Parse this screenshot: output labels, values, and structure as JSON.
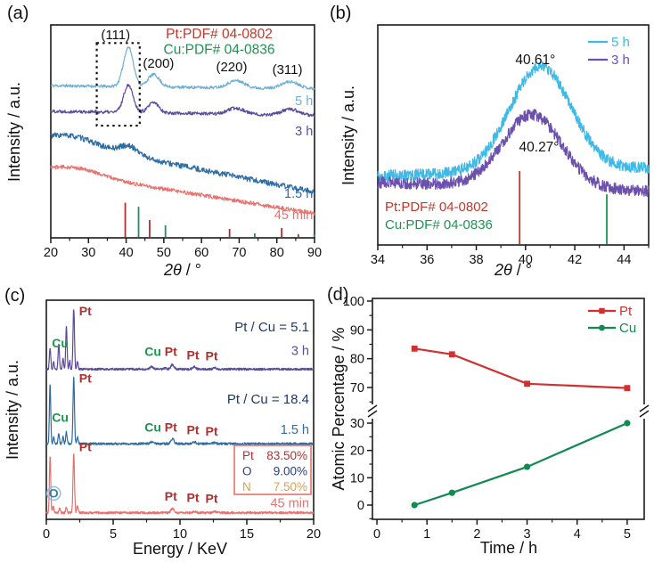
{
  "panels": {
    "a": {
      "label": "(a)"
    },
    "b": {
      "label": "(b)"
    },
    "c": {
      "label": "(c)"
    },
    "d": {
      "label": "(d)"
    }
  },
  "chart_data": [
    {
      "panel": "a",
      "type": "line",
      "subtype": "xrd",
      "title": "",
      "xlabel": "2θ / °",
      "ylabel": "Intensity / a.u.",
      "xlim": [
        20,
        90
      ],
      "xticks": [
        20,
        30,
        40,
        50,
        60,
        70,
        80,
        90
      ],
      "x_minor_step": 5,
      "legend_texts": [
        {
          "text": "Pt:PDF# 04-0802",
          "color": "#C0392B"
        },
        {
          "text": "Cu:PDF# 04-0836",
          "color": "#1E9452"
        }
      ],
      "peak_labels": [
        {
          "text": "(111)",
          "x": 37.2,
          "yfrac": 0.933
        },
        {
          "text": "(200)",
          "x": 48.6,
          "yfrac": 0.8
        },
        {
          "text": "(220)",
          "x": 68.0,
          "yfrac": 0.782
        },
        {
          "text": "(311)",
          "x": 82.8,
          "yfrac": 0.77
        }
      ],
      "dashed_box": {
        "x0": 32.2,
        "x1": 43.6,
        "yfrac0": 0.527,
        "yfrac1": 0.915
      },
      "series": [
        {
          "name": "5 h",
          "color": "#6FAFD6",
          "base_start": 0.715,
          "base_end": 0.7,
          "noise": 0.007,
          "seed": 11,
          "peaks": [
            {
              "c": 40.6,
              "h": 0.185,
              "w": 1.3
            },
            {
              "c": 47.3,
              "h": 0.058,
              "w": 1.5
            },
            {
              "c": 69.2,
              "h": 0.034,
              "w": 2.2
            },
            {
              "c": 83.6,
              "h": 0.032,
              "w": 2.3
            }
          ],
          "label": {
            "text": "5 h",
            "yfrac": 0.623
          }
        },
        {
          "name": "3 h",
          "color": "#5B4B9D",
          "base_start": 0.595,
          "base_end": 0.575,
          "noise": 0.008,
          "seed": 22,
          "peaks": [
            {
              "c": 40.6,
              "h": 0.13,
              "w": 1.25
            },
            {
              "c": 47.3,
              "h": 0.048,
              "w": 1.4
            },
            {
              "c": 69.2,
              "h": 0.028,
              "w": 2.2
            },
            {
              "c": 83.6,
              "h": 0.027,
              "w": 2.2
            }
          ],
          "label": {
            "text": "3 h",
            "yfrac": 0.481
          }
        },
        {
          "name": "1.5 h",
          "color": "#2E6DA4",
          "base_start": 0.46,
          "base_end": 0.215,
          "noise": 0.013,
          "seed": 33,
          "peaks": [
            {
              "c": 26.5,
              "h": 0.038,
              "w": 6.0
            },
            {
              "c": 40.8,
              "h": 0.042,
              "w": 2.6
            }
          ],
          "label": {
            "text": "1.5 h",
            "yfrac": 0.188
          }
        },
        {
          "name": "45 min",
          "color": "#E8716D",
          "base_start": 0.315,
          "base_end": 0.115,
          "noise": 0.009,
          "seed": 44,
          "peaks": [
            {
              "c": 27.5,
              "h": 0.033,
              "w": 6.5
            }
          ],
          "label": {
            "text": "45 min",
            "yfrac": 0.088
          }
        }
      ],
      "reference_sticks": [
        {
          "name": "Pt",
          "color": "#B03030",
          "lines": [
            [
              39.76,
              0.165
            ],
            [
              46.24,
              0.084
            ],
            [
              67.45,
              0.042
            ],
            [
              81.28,
              0.046
            ],
            [
              85.71,
              0.017
            ]
          ]
        },
        {
          "name": "Cu",
          "color": "#1E9452",
          "lines": [
            [
              43.3,
              0.146
            ],
            [
              50.43,
              0.059
            ],
            [
              74.13,
              0.021
            ],
            [
              89.93,
              0.017
            ]
          ]
        }
      ]
    },
    {
      "panel": "b",
      "type": "line",
      "subtype": "xrd",
      "title": "",
      "xlabel": "2θ / °",
      "ylabel": "Intensity / a.u.",
      "xlim": [
        34,
        45
      ],
      "xticks": [
        34,
        36,
        38,
        40,
        42,
        44
      ],
      "x_minor_step": 1,
      "legend": [
        {
          "text": "5 h",
          "color": "#3FB9E5"
        },
        {
          "text": "3 h",
          "color": "#6C50AE"
        }
      ],
      "annotations": [
        {
          "text": "40.61°",
          "x": 40.4,
          "yfrac": 0.822
        },
        {
          "text": "40.27°",
          "x": 40.55,
          "yfrac": 0.425
        }
      ],
      "series": [
        {
          "name": "5 h",
          "color": "#3FB9E5",
          "base_start": 0.315,
          "base_end": 0.35,
          "noise": 0.026,
          "seed": 55,
          "peaks": [
            {
              "c": 40.61,
              "h": 0.475,
              "w": 1.25
            }
          ]
        },
        {
          "name": "3 h",
          "color": "#6C50AE",
          "base_start": 0.285,
          "base_end": 0.245,
          "noise": 0.026,
          "seed": 66,
          "peaks": [
            {
              "c": 40.27,
              "h": 0.33,
              "w": 1.2
            }
          ]
        }
      ],
      "reference_sticks": [
        {
          "name": "Pt",
          "color": "#C0392B",
          "lines": [
            [
              39.76,
              0.336
            ]
          ]
        },
        {
          "name": "Cu",
          "color": "#1E9452",
          "lines": [
            [
              43.3,
              0.23
            ]
          ]
        }
      ],
      "pdf_labels": [
        {
          "text": "Pt:PDF# 04-0802",
          "color": "#C0392B",
          "yfrac": 0.154
        },
        {
          "text": "Cu:PDF# 04-0836",
          "color": "#1E9452",
          "yfrac": 0.073
        }
      ]
    },
    {
      "panel": "c",
      "type": "line",
      "subtype": "edx",
      "title": "",
      "xlabel": "Energy / KeV",
      "ylabel": "Intensity / a.u.",
      "xlim": [
        0,
        20
      ],
      "xticks": [
        0,
        5,
        10,
        15,
        20
      ],
      "x_minor_step": 2.5,
      "spectra": [
        {
          "name": "3 h",
          "color": "#5B4B9D",
          "base": 0.685,
          "noise": 0.005,
          "seed": 77,
          "ratio": {
            "text": "Pt / Cu = 5.1",
            "yfrac": 0.857,
            "color": "#1F3864"
          },
          "name_label": {
            "text": "3 h",
            "yfrac": 0.75
          },
          "peaks": [
            [
              0.28,
              0.1,
              0.05
            ],
            [
              0.55,
              0.035,
              0.045
            ],
            [
              0.93,
              0.115,
              0.05
            ],
            [
              1.25,
              0.05,
              0.045
            ],
            [
              1.5,
              0.2,
              0.05
            ],
            [
              1.75,
              0.04,
              0.04
            ],
            [
              2.05,
              0.275,
              0.055
            ],
            [
              2.33,
              0.035,
              0.05
            ],
            [
              7.9,
              0.012,
              0.12
            ],
            [
              8.9,
              0.005,
              0.1
            ],
            [
              9.44,
              0.022,
              0.12
            ],
            [
              11.07,
              0.01,
              0.12
            ],
            [
              12.6,
              0.007,
              0.12
            ]
          ],
          "labels": [
            {
              "text": "Pt",
              "x": 2.45,
              "yfrac": 0.93,
              "color": "#B03030"
            },
            {
              "text": "Cu",
              "x": 0.42,
              "yfrac": 0.785,
              "color": "#1E9452"
            },
            {
              "text": "Cu",
              "x": 7.35,
              "yfrac": 0.745,
              "color": "#1E9452"
            },
            {
              "text": "Pt",
              "x": 8.85,
              "yfrac": 0.745,
              "color": "#B03030"
            },
            {
              "text": "Pt",
              "x": 10.5,
              "yfrac": 0.73,
              "color": "#B03030"
            },
            {
              "text": "Pt",
              "x": 11.9,
              "yfrac": 0.725,
              "color": "#B03030"
            }
          ]
        },
        {
          "name": "1.5 h",
          "color": "#2E6DA4",
          "base": 0.345,
          "noise": 0.005,
          "seed": 88,
          "ratio": {
            "text": "Pt / Cu = 18.4",
            "yfrac": 0.528,
            "color": "#1F3864"
          },
          "name_label": {
            "text": "1.5 h",
            "yfrac": 0.39
          },
          "peaks": [
            [
              0.28,
              0.27,
              0.05
            ],
            [
              0.55,
              0.03,
              0.045
            ],
            [
              0.93,
              0.045,
              0.05
            ],
            [
              1.25,
              0.035,
              0.045
            ],
            [
              1.5,
              0.055,
              0.05
            ],
            [
              2.05,
              0.3,
              0.055
            ],
            [
              2.33,
              0.03,
              0.05
            ],
            [
              7.9,
              0.008,
              0.12
            ],
            [
              9.44,
              0.022,
              0.12
            ],
            [
              11.07,
              0.008,
              0.12
            ],
            [
              12.6,
              0.005,
              0.12
            ]
          ],
          "labels": [
            {
              "text": "Pt",
              "x": 2.45,
              "yfrac": 0.625,
              "color": "#B03030"
            },
            {
              "text": "Cu",
              "x": 0.42,
              "yfrac": 0.445,
              "color": "#1E9452"
            },
            {
              "text": "Cu",
              "x": 7.35,
              "yfrac": 0.4,
              "color": "#1E9452"
            },
            {
              "text": "Pt",
              "x": 8.85,
              "yfrac": 0.4,
              "color": "#B03030"
            },
            {
              "text": "Pt",
              "x": 10.5,
              "yfrac": 0.388,
              "color": "#B03030"
            },
            {
              "text": "Pt",
              "x": 11.9,
              "yfrac": 0.383,
              "color": "#B03030"
            }
          ]
        },
        {
          "name": "45 min",
          "color": "#E8716D",
          "base": 0.03,
          "noise": 0.005,
          "seed": 99,
          "name_label": {
            "text": "45 min",
            "yfrac": 0.055
          },
          "inset": {
            "border_color": "#E8716D",
            "rows": [
              {
                "element": "Pt",
                "value": "83.50%",
                "color": "#B03030"
              },
              {
                "element": "O",
                "value": "9.00%",
                "color": "#2C3E7A"
              },
              {
                "element": "N",
                "value": "7.50%",
                "color": "#D9A05B"
              }
            ]
          },
          "peaks": [
            [
              0.28,
              0.26,
              0.05
            ],
            [
              0.52,
              0.03,
              0.05
            ],
            [
              1.0,
              0.02,
              0.05
            ],
            [
              1.5,
              0.025,
              0.05
            ],
            [
              2.05,
              0.27,
              0.055
            ],
            [
              2.33,
              0.03,
              0.05
            ],
            [
              9.44,
              0.02,
              0.12
            ],
            [
              11.07,
              0.007,
              0.12
            ],
            [
              12.6,
              0.005,
              0.12
            ]
          ],
          "labels": [
            {
              "text": "Pt",
              "x": 2.45,
              "yfrac": 0.31,
              "color": "#B03030"
            },
            {
              "text": "O",
              "x": 0.55,
              "yfrac": 0.1,
              "color": "#3E7CA8",
              "circle": true
            },
            {
              "text": "Pt",
              "x": 8.85,
              "yfrac": 0.085,
              "color": "#B03030"
            },
            {
              "text": "Pt",
              "x": 10.5,
              "yfrac": 0.08,
              "color": "#B03030"
            },
            {
              "text": "Pt",
              "x": 11.9,
              "yfrac": 0.075,
              "color": "#B03030"
            }
          ]
        }
      ]
    },
    {
      "panel": "d",
      "type": "line",
      "subtype": "broken_line",
      "title": "",
      "xlabel": "Time / h",
      "ylabel": "Atomic Percentage / %",
      "xlim": [
        -0.09,
        5.34
      ],
      "xticks": [
        0,
        1,
        2,
        3,
        4,
        5
      ],
      "x_minor_step": 0.5,
      "x": [
        0.75,
        1.5,
        3,
        5
      ],
      "yticks_upper": [
        70,
        80,
        90,
        100
      ],
      "yticks_lower": [
        0,
        10,
        20,
        30
      ],
      "y_minor_step": 5,
      "axis_break": true,
      "series": [
        {
          "name": "Pt",
          "color": "#D03030",
          "marker": "square",
          "values": [
            83.5,
            81.5,
            71.3,
            69.8
          ]
        },
        {
          "name": "Cu",
          "color": "#118A50",
          "marker": "circle",
          "values": [
            0,
            4.5,
            14,
            30
          ]
        }
      ],
      "legend": [
        {
          "text": "Pt",
          "color": "#D03030"
        },
        {
          "text": "Cu",
          "color": "#118A50"
        }
      ]
    }
  ]
}
